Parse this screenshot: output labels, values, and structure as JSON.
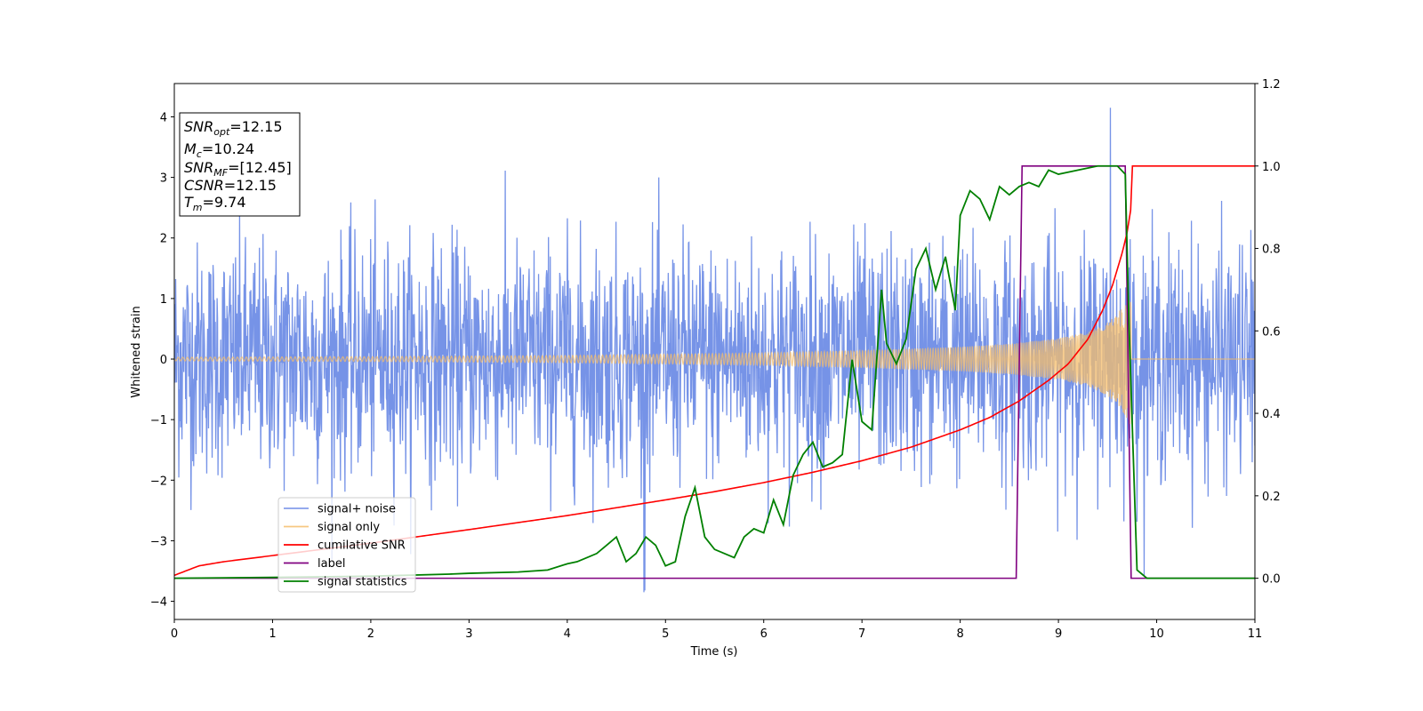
{
  "chart_data": {
    "type": "line",
    "xlabel": "Time (s)",
    "ylabel": "Whitened strain",
    "xlim": [
      0,
      11
    ],
    "ylim_left": [
      -4.3,
      4.55
    ],
    "ylim_right": [
      -0.1,
      1.2
    ],
    "xticks": [
      0,
      1,
      2,
      3,
      4,
      5,
      6,
      7,
      8,
      9,
      10,
      11
    ],
    "yticks_left": [
      -4,
      -3,
      -2,
      -1,
      0,
      1,
      2,
      3,
      4
    ],
    "yticks_right": [
      "0.0",
      "0.2",
      "0.4",
      "0.6",
      "0.8",
      "1.0",
      "1.2"
    ],
    "grid": false,
    "legend_position": "lower-left",
    "series": [
      {
        "name": "signal+ noise",
        "axis": "left",
        "color": "#6f8de6",
        "description_values": {
          "noise_sigma": 1.0,
          "t_min": 0,
          "t_max": 11,
          "max_peak": 4.15,
          "max_peak_time": 9.53,
          "min_peak": -3.85,
          "min_peak_time": 4.78
        }
      },
      {
        "name": "signal only",
        "axis": "left",
        "color": "#f5bd6b",
        "envelope": [
          [
            0,
            0.03
          ],
          [
            2,
            0.04
          ],
          [
            4,
            0.06
          ],
          [
            6,
            0.1
          ],
          [
            7,
            0.14
          ],
          [
            8,
            0.2
          ],
          [
            8.5,
            0.25
          ],
          [
            9,
            0.34
          ],
          [
            9.3,
            0.45
          ],
          [
            9.5,
            0.6
          ],
          [
            9.65,
            0.85
          ],
          [
            9.74,
            1.1
          ],
          [
            9.76,
            0.0
          ],
          [
            11,
            0.0
          ]
        ],
        "merger_time": 9.74
      },
      {
        "name": "cumilative SNR",
        "axis": "right",
        "color": "#ff0000",
        "x": [
          0,
          0.25,
          0.5,
          1,
          2,
          3,
          4,
          5,
          5.5,
          6,
          6.5,
          7,
          7.5,
          8,
          8.3,
          8.6,
          8.9,
          9.1,
          9.3,
          9.45,
          9.55,
          9.65,
          9.7,
          9.74,
          9.75,
          11
        ],
        "y": [
          0.007,
          0.03,
          0.04,
          0.055,
          0.085,
          0.118,
          0.152,
          0.19,
          0.21,
          0.232,
          0.257,
          0.285,
          0.318,
          0.36,
          0.39,
          0.43,
          0.48,
          0.52,
          0.58,
          0.65,
          0.71,
          0.79,
          0.84,
          0.9,
          1.0,
          1.0
        ]
      },
      {
        "name": "label",
        "axis": "right",
        "color": "#800080",
        "x": [
          0,
          8.57,
          8.63,
          9.68,
          9.74,
          11
        ],
        "y": [
          0.0,
          0.0,
          1.0,
          1.0,
          0.0,
          0.0
        ]
      },
      {
        "name": "signal statistics",
        "axis": "right",
        "color": "#008000",
        "x": [
          0,
          1,
          2,
          2.8,
          3.0,
          3.5,
          3.8,
          4.0,
          4.1,
          4.2,
          4.3,
          4.4,
          4.5,
          4.6,
          4.7,
          4.8,
          4.9,
          5.0,
          5.1,
          5.2,
          5.3,
          5.4,
          5.5,
          5.6,
          5.7,
          5.8,
          5.9,
          6.0,
          6.1,
          6.2,
          6.3,
          6.4,
          6.5,
          6.6,
          6.7,
          6.8,
          6.9,
          7.0,
          7.1,
          7.2,
          7.25,
          7.35,
          7.45,
          7.55,
          7.65,
          7.75,
          7.85,
          7.95,
          8.0,
          8.1,
          8.2,
          8.3,
          8.4,
          8.5,
          8.6,
          8.7,
          8.8,
          8.9,
          9.0,
          9.2,
          9.4,
          9.6,
          9.68,
          9.72,
          9.8,
          9.9,
          10.0,
          11.0
        ],
        "y": [
          0.0,
          0.002,
          0.005,
          0.01,
          0.012,
          0.015,
          0.02,
          0.035,
          0.04,
          0.05,
          0.06,
          0.08,
          0.1,
          0.04,
          0.06,
          0.1,
          0.08,
          0.03,
          0.04,
          0.15,
          0.22,
          0.1,
          0.07,
          0.06,
          0.05,
          0.1,
          0.12,
          0.11,
          0.19,
          0.13,
          0.25,
          0.3,
          0.33,
          0.27,
          0.28,
          0.3,
          0.53,
          0.38,
          0.36,
          0.7,
          0.57,
          0.52,
          0.58,
          0.75,
          0.8,
          0.7,
          0.78,
          0.65,
          0.88,
          0.94,
          0.92,
          0.87,
          0.95,
          0.93,
          0.95,
          0.96,
          0.95,
          0.99,
          0.98,
          0.99,
          1.0,
          1.0,
          0.98,
          0.6,
          0.02,
          0.0,
          0.0,
          0.0
        ]
      }
    ]
  },
  "stats_box": {
    "snr_opt_label": "SNR",
    "snr_opt_sub": "opt",
    "snr_opt_value": "=12.15",
    "mc_label": "M",
    "mc_sub": "c",
    "mc_value": "=10.24",
    "snr_mf_label": "SNR",
    "snr_mf_sub": "MF",
    "snr_mf_value": "=[12.45]",
    "csnr_label": "CSNR",
    "csnr_value": "=12.15",
    "tm_label": "T",
    "tm_sub": "m",
    "tm_value": "=9.74"
  }
}
